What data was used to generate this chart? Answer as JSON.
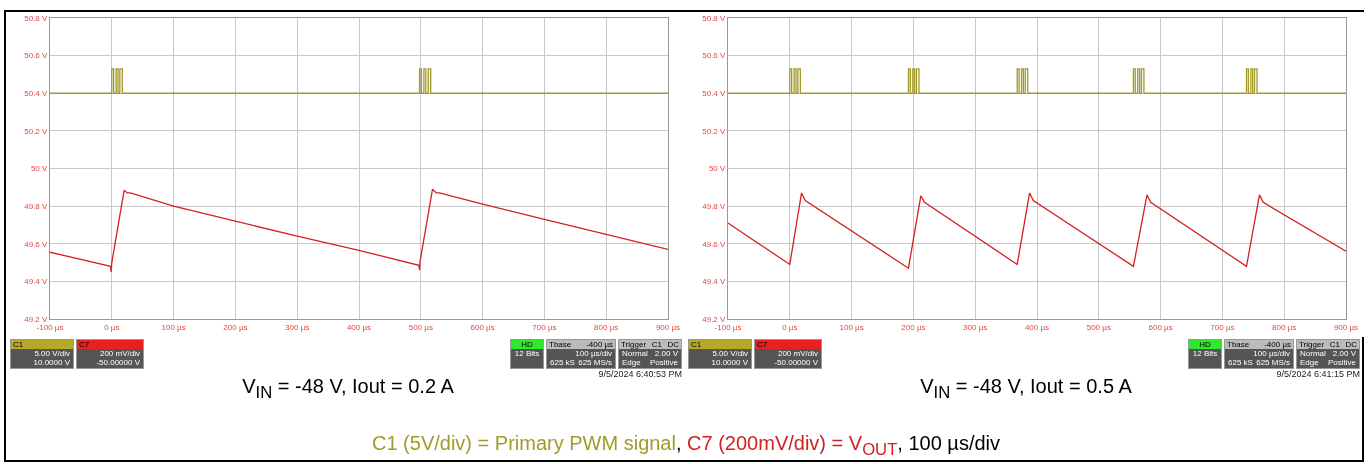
{
  "chart_data": [
    {
      "type": "line",
      "xlabel": "V$_{IN}$ = -48 V, Iout = 0.2 A",
      "xlim": [
        -100,
        900
      ],
      "xticks": [
        {
          "value": -100,
          "label": "-100 µs"
        },
        {
          "value": 0,
          "label": "0 µs"
        },
        {
          "value": 100,
          "label": "100 µs"
        },
        {
          "value": 200,
          "label": "200 µs"
        },
        {
          "value": 300,
          "label": "300 µs"
        },
        {
          "value": 400,
          "label": "400 µs"
        },
        {
          "value": 500,
          "label": "500 µs"
        },
        {
          "value": 600,
          "label": "600 µs"
        },
        {
          "value": 700,
          "label": "700 µs"
        },
        {
          "value": 800,
          "label": "800 µs"
        },
        {
          "value": 900,
          "label": "900 µs"
        }
      ],
      "ylim": [
        49.2,
        50.8
      ],
      "yticks": [
        {
          "value": 49.2,
          "label": "49.2 V"
        },
        {
          "value": 49.4,
          "label": "49.4 V"
        },
        {
          "value": 49.6,
          "label": "49.6 V"
        },
        {
          "value": 49.8,
          "label": "49.8 V"
        },
        {
          "value": 50,
          "label": "50 V"
        },
        {
          "value": 50.2,
          "label": "50.2 V"
        },
        {
          "value": 50.4,
          "label": "50.4 V"
        },
        {
          "value": 50.6,
          "label": "50.6 V"
        },
        {
          "value": 50.8,
          "label": "50.8 V"
        }
      ],
      "grid": true,
      "legend": "bottom",
      "marker": "none",
      "line_style": "solid",
      "series": [
        {
          "name": "C1 (5V/div) = Primary PWM signal",
          "color": "#a39a2a",
          "x": [
            -100,
            0,
            0,
            3,
            3,
            7,
            7,
            10,
            10,
            13,
            13,
            17,
            17,
            498,
            498,
            501,
            501,
            505,
            505,
            508,
            508,
            512,
            512,
            516,
            516,
            900
          ],
          "values": [
            50.4,
            50.4,
            50.53,
            50.53,
            50.4,
            50.4,
            50.53,
            50.53,
            50.4,
            50.4,
            50.53,
            50.53,
            50.4,
            50.4,
            50.53,
            50.53,
            50.4,
            50.4,
            50.53,
            50.53,
            50.4,
            50.4,
            50.53,
            50.53,
            50.4,
            50.4
          ]
        },
        {
          "name": "C7 (200mV/div) = V$_{OUT}$",
          "color": "#d42020",
          "x": [
            -100,
            -2,
            -1,
            0,
            20,
            25,
            30,
            100,
            200,
            300,
            400,
            497,
            498,
            499,
            519,
            525,
            530,
            600,
            700,
            800,
            900
          ],
          "values": [
            49.555,
            49.48,
            49.45,
            49.5,
            49.885,
            49.87,
            49.87,
            49.8,
            49.72,
            49.64,
            49.565,
            49.485,
            49.46,
            49.51,
            49.89,
            49.87,
            49.87,
            49.81,
            49.73,
            49.65,
            49.57
          ]
        }
      ],
      "annotations": [
        "C1",
        "5.00 V/div",
        "10.0000 V",
        "C7",
        "200 mV/div",
        "-50.00000 V",
        "HD",
        "12 Bits",
        "Tbase",
        "-400 µs",
        "100 µs/div",
        "625 kS",
        "625 MS/s",
        "Trigger",
        "C1",
        "DC",
        "Normal",
        "2.00 V",
        "Edge",
        "Positive",
        "9/5/2024 6:40:53 PM",
        ",",
        ", 100 µs/div"
      ]
    },
    {
      "type": "line",
      "xlabel": "V$_{IN}$ = -48 V, Iout = 0.5 A",
      "xlim": [
        -100,
        900
      ],
      "xticks": [
        {
          "value": -100,
          "label": "-100 µs"
        },
        {
          "value": 0,
          "label": "0 µs"
        },
        {
          "value": 100,
          "label": "100 µs"
        },
        {
          "value": 200,
          "label": "200 µs"
        },
        {
          "value": 300,
          "label": "300 µs"
        },
        {
          "value": 400,
          "label": "400 µs"
        },
        {
          "value": 500,
          "label": "500 µs"
        },
        {
          "value": 600,
          "label": "600 µs"
        },
        {
          "value": 700,
          "label": "700 µs"
        },
        {
          "value": 800,
          "label": "800 µs"
        },
        {
          "value": 900,
          "label": "900 µs"
        }
      ],
      "ylim": [
        49.2,
        50.8
      ],
      "yticks": [
        {
          "value": 49.2,
          "label": "49.2 V"
        },
        {
          "value": 49.4,
          "label": "49.4 V"
        },
        {
          "value": 49.6,
          "label": "49.6 V"
        },
        {
          "value": 49.8,
          "label": "49.8 V"
        },
        {
          "value": 50,
          "label": "50 V"
        },
        {
          "value": 50.2,
          "label": "50.2 V"
        },
        {
          "value": 50.4,
          "label": "50.4 V"
        },
        {
          "value": 50.6,
          "label": "50.6 V"
        },
        {
          "value": 50.8,
          "label": "50.8 V"
        }
      ],
      "grid": true,
      "marker": "none",
      "line_style": "solid",
      "series": [
        {
          "color": "#a39a2a",
          "x": [
            -100,
            0,
            0,
            3,
            3,
            7,
            7,
            10,
            10,
            13,
            13,
            17,
            17,
            192,
            192,
            195,
            195,
            199,
            199,
            202,
            202,
            205,
            205,
            209,
            209,
            368,
            368,
            371,
            371,
            375,
            375,
            378,
            378,
            381,
            381,
            385,
            385,
            556,
            556,
            559,
            559,
            563,
            563,
            566,
            566,
            569,
            569,
            573,
            573,
            739,
            739,
            742,
            742,
            746,
            746,
            749,
            749,
            752,
            752,
            756,
            756,
            900
          ],
          "values": [
            50.4,
            50.4,
            50.53,
            50.53,
            50.4,
            50.4,
            50.53,
            50.53,
            50.4,
            50.4,
            50.53,
            50.53,
            50.4,
            50.4,
            50.53,
            50.53,
            50.4,
            50.4,
            50.53,
            50.53,
            50.4,
            50.4,
            50.53,
            50.53,
            50.4,
            50.4,
            50.53,
            50.53,
            50.4,
            50.4,
            50.53,
            50.53,
            50.4,
            50.4,
            50.53,
            50.53,
            50.4,
            50.4,
            50.53,
            50.53,
            50.4,
            50.4,
            50.53,
            50.53,
            50.4,
            50.4,
            50.53,
            50.53,
            50.4,
            50.4,
            50.53,
            50.53,
            50.4,
            50.4,
            50.53,
            50.53,
            50.4,
            50.4,
            50.53,
            50.53,
            50.4,
            50.4
          ]
        },
        {
          "color": "#d42020",
          "x": [
            -100,
            0,
            19,
            25,
            192,
            212,
            218,
            368,
            388,
            394,
            556,
            578,
            584,
            739,
            760,
            766,
            900
          ],
          "values": [
            49.71,
            49.49,
            49.87,
            49.83,
            49.47,
            49.855,
            49.82,
            49.49,
            49.87,
            49.83,
            49.48,
            49.86,
            49.82,
            49.48,
            49.86,
            49.82,
            49.56
          ]
        }
      ],
      "annotations": [
        "C1",
        "5.00 V/div",
        "10.0000 V",
        "C7",
        "200 mV/div",
        "-50.00000 V",
        "HD",
        "12 Bits",
        "Tbase",
        "-400 µs",
        "100 µs/div",
        "625 kS",
        "625 MS/s",
        "Trigger",
        "C1",
        "DC",
        "Normal",
        "2.00 V",
        "Edge",
        "Positive",
        "9/5/2024 6:41:15 PM"
      ]
    }
  ]
}
